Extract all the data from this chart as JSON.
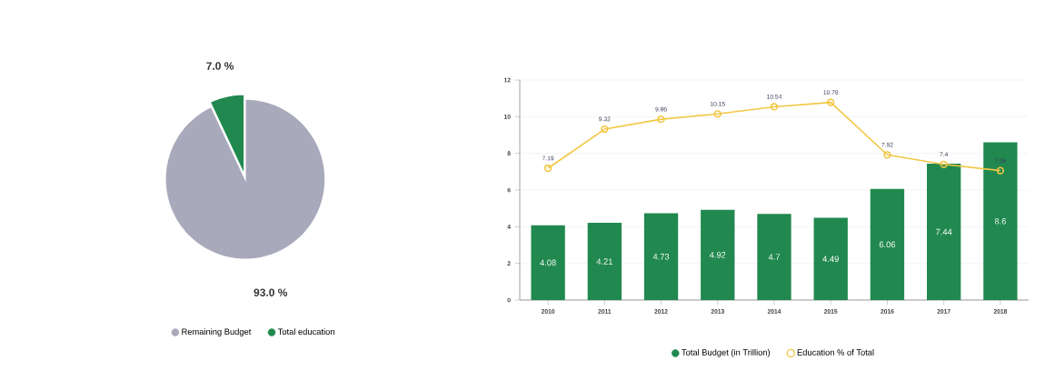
{
  "chart_data": [
    {
      "type": "pie",
      "categories": [
        "Remaining Budget",
        "Total education"
      ],
      "values": [
        93.0,
        7.0
      ],
      "colors": [
        "#a9a9bc",
        "#21894f"
      ],
      "value_labels": [
        "93.0 %",
        "7.0 %"
      ],
      "legend": "bottom"
    },
    {
      "type": "bar",
      "categories": [
        "2010",
        "2011",
        "2012",
        "2013",
        "2014",
        "2015",
        "2016",
        "2017",
        "2018"
      ],
      "series": [
        {
          "name": "Total Budget (in Trillion)",
          "type": "bar",
          "color": "#21894f",
          "values": [
            4.08,
            4.21,
            4.73,
            4.92,
            4.7,
            4.49,
            6.06,
            7.44,
            8.6
          ]
        },
        {
          "name": "Education % of Total",
          "type": "line",
          "color": "#f2c744",
          "marker": "circle",
          "values": [
            7.19,
            9.32,
            9.86,
            10.15,
            10.54,
            10.78,
            7.92,
            7.4,
            7.06
          ]
        }
      ],
      "ylim": [
        0,
        12
      ],
      "yticks": [
        0,
        2,
        4,
        6,
        8,
        10,
        12
      ],
      "grid": "y",
      "legend": "bottom",
      "data_labels": true
    }
  ]
}
